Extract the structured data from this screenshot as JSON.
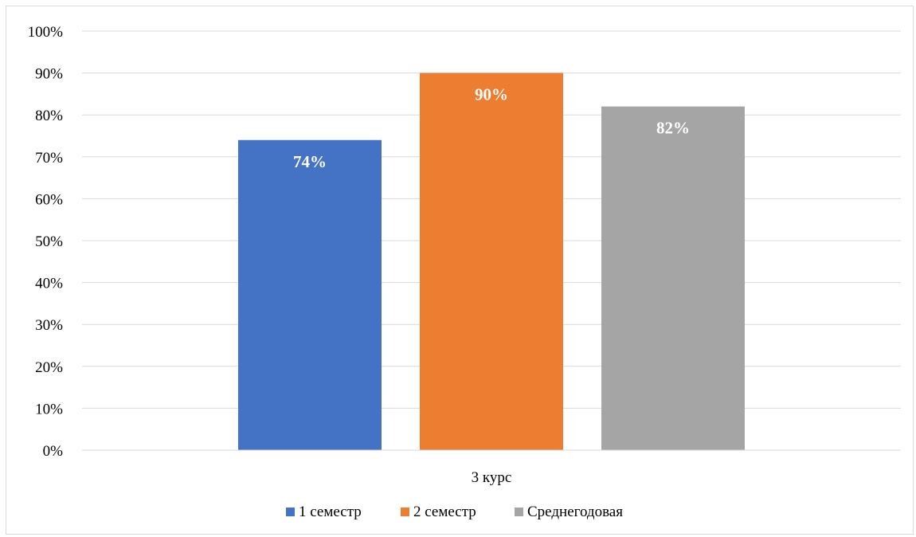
{
  "chart_data": {
    "type": "bar",
    "categories": [
      "3 курс"
    ],
    "series": [
      {
        "name": "1 семестр",
        "values": [
          74
        ],
        "color": "#4472C4"
      },
      {
        "name": "2 семестр",
        "values": [
          90
        ],
        "color": "#ED7D31"
      },
      {
        "name": "Среднегодовая",
        "values": [
          82
        ],
        "color": "#A5A5A5"
      }
    ],
    "data_labels": [
      "74%",
      "90%",
      "82%"
    ],
    "ylim": [
      0,
      100
    ],
    "yticks": [
      "0%",
      "10%",
      "20%",
      "30%",
      "40%",
      "50%",
      "60%",
      "70%",
      "80%",
      "90%",
      "100%"
    ],
    "grid": true,
    "legend_position": "bottom"
  }
}
